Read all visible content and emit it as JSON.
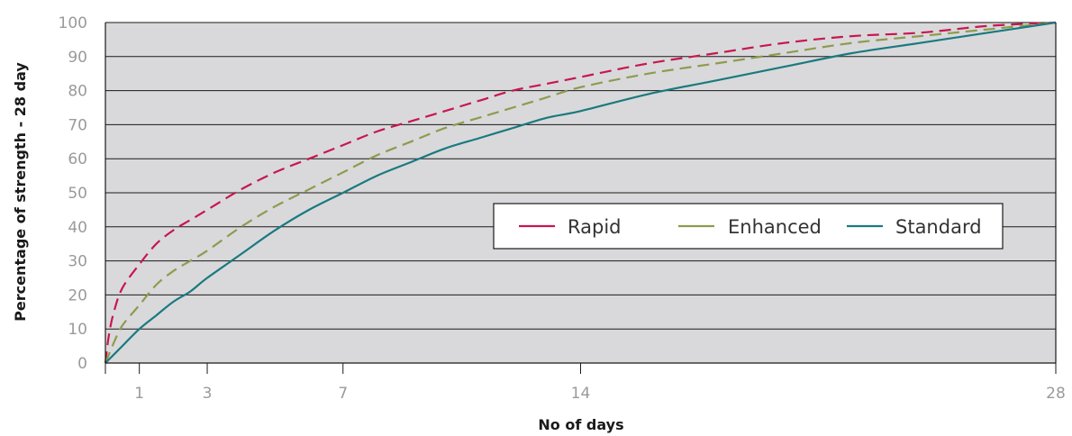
{
  "chart_data": {
    "type": "line",
    "xlabel": "No of days",
    "ylabel": "Percentage of strength - 28 day",
    "xlim": [
      0,
      28
    ],
    "ylim": [
      0,
      100
    ],
    "x_ticks": [
      1,
      3,
      7,
      14,
      28
    ],
    "y_ticks": [
      0,
      10,
      20,
      30,
      40,
      50,
      60,
      70,
      80,
      90,
      100
    ],
    "grid": "horizontal",
    "legend_position": "center-right",
    "series": [
      {
        "name": "Rapid",
        "color": "#c8174f",
        "style": "dashed",
        "x": [
          0,
          0.1,
          0.25,
          0.5,
          1,
          1.5,
          2,
          2.5,
          3,
          4,
          5,
          6,
          7,
          8,
          9,
          10,
          11,
          12,
          13,
          14,
          16,
          18,
          20,
          22,
          24,
          26,
          28
        ],
        "y": [
          0,
          8,
          15,
          22,
          29,
          35,
          39,
          42,
          45,
          51,
          56,
          60,
          64,
          68,
          71,
          74,
          77,
          80,
          82,
          84,
          88,
          91,
          94,
          96,
          97,
          99,
          100
        ]
      },
      {
        "name": "Enhanced",
        "color": "#8e9b4f",
        "style": "dashed",
        "x": [
          0,
          0.25,
          0.5,
          1,
          1.5,
          2,
          2.5,
          3,
          4,
          5,
          6,
          7,
          8,
          9,
          10,
          11,
          12,
          13,
          14,
          16,
          18,
          20,
          22,
          24,
          26,
          28
        ],
        "y": [
          0,
          6,
          11,
          17,
          23,
          27,
          30,
          33,
          40,
          46,
          51,
          56,
          61,
          65,
          69,
          72,
          75,
          78,
          81,
          85,
          88,
          91,
          94,
          96,
          98,
          100
        ]
      },
      {
        "name": "Standard",
        "color": "#1a7a80",
        "style": "solid",
        "x": [
          0,
          0.5,
          1,
          1.5,
          2,
          2.5,
          3,
          4,
          5,
          6,
          7,
          8,
          9,
          10,
          11,
          12,
          13,
          14,
          16,
          18,
          20,
          22,
          24,
          26,
          28
        ],
        "y": [
          0,
          5,
          10,
          14,
          18,
          21,
          25,
          32,
          39,
          45,
          50,
          55,
          59,
          63,
          66,
          69,
          72,
          74,
          79,
          83,
          87,
          91,
          94,
          97,
          100
        ]
      }
    ]
  }
}
